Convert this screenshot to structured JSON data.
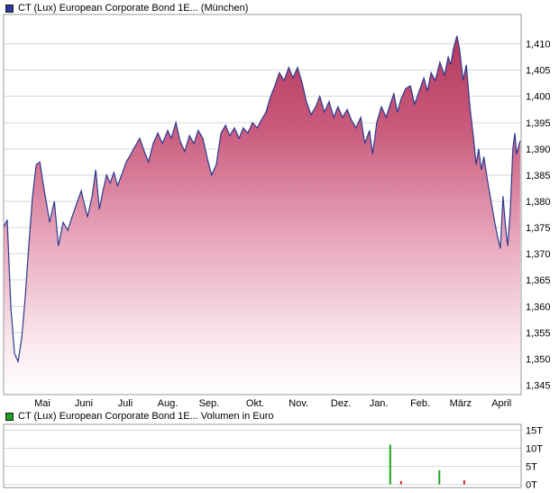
{
  "header_price": {
    "title": "CT (Lux) European Corporate Bond 1E... (München)"
  },
  "header_volume": {
    "title": "CT (Lux) European Corporate Bond 1E... Volumen in Euro"
  },
  "chart_data": [
    {
      "type": "area",
      "title": "CT (Lux) European Corporate Bond 1E... (München)",
      "marker_color": "#2b3a9c",
      "line_color": "#2b3a8f",
      "border_color": "#999999",
      "grid_color": "#d9d9d9",
      "fill_stops": [
        [
          "0%",
          "#b03055"
        ],
        [
          "30%",
          "#c95b7d"
        ],
        [
          "60%",
          "#e9a9bd"
        ],
        [
          "85%",
          "#f9e5eb"
        ],
        [
          "100%",
          "#ffffff"
        ]
      ],
      "ylim": [
        1343.2,
        1415.6
      ],
      "y_ticks": [
        1345,
        1350,
        1355,
        1360,
        1365,
        1370,
        1375,
        1380,
        1385,
        1390,
        1395,
        1400,
        1405,
        1410
      ],
      "y_tick_labels": [
        "1,345",
        "1,350",
        "1,355",
        "1,360",
        "1,365",
        "1,370",
        "1,375",
        "1,380",
        "1,385",
        "1,390",
        "1,395",
        "1,400",
        "1,405",
        "1,410"
      ],
      "x_tick_labels": [
        "Mai",
        "Juni",
        "Juli",
        "Aug.",
        "Sep.",
        "Okt.",
        "Nov.",
        "Dez.",
        "Jan.",
        "Feb.",
        "März",
        "April"
      ],
      "x_tick_positions": [
        0.075,
        0.155,
        0.235,
        0.317,
        0.397,
        0.486,
        0.57,
        0.652,
        0.725,
        0.805,
        0.883,
        0.962
      ],
      "points": [
        [
          0.0,
          1375.0
        ],
        [
          0.007,
          1376.5
        ],
        [
          0.014,
          1360.0
        ],
        [
          0.021,
          1351.0
        ],
        [
          0.028,
          1349.5
        ],
        [
          0.035,
          1354.0
        ],
        [
          0.042,
          1362.0
        ],
        [
          0.049,
          1372.0
        ],
        [
          0.056,
          1381.0
        ],
        [
          0.063,
          1387.0
        ],
        [
          0.07,
          1387.5
        ],
        [
          0.077,
          1383.0
        ],
        [
          0.084,
          1379.0
        ],
        [
          0.089,
          1376.0
        ],
        [
          0.098,
          1380.0
        ],
        [
          0.106,
          1371.5
        ],
        [
          0.115,
          1376.0
        ],
        [
          0.124,
          1374.5
        ],
        [
          0.132,
          1377.0
        ],
        [
          0.141,
          1379.5
        ],
        [
          0.15,
          1382.0
        ],
        [
          0.162,
          1377.0
        ],
        [
          0.171,
          1381.0
        ],
        [
          0.178,
          1386.0
        ],
        [
          0.185,
          1378.5
        ],
        [
          0.192,
          1382.0
        ],
        [
          0.199,
          1385.0
        ],
        [
          0.206,
          1383.5
        ],
        [
          0.213,
          1385.5
        ],
        [
          0.22,
          1383.0
        ],
        [
          0.228,
          1385.0
        ],
        [
          0.237,
          1387.5
        ],
        [
          0.246,
          1389.0
        ],
        [
          0.254,
          1390.5
        ],
        [
          0.263,
          1392.0
        ],
        [
          0.272,
          1389.5
        ],
        [
          0.28,
          1387.5
        ],
        [
          0.289,
          1391.0
        ],
        [
          0.298,
          1393.0
        ],
        [
          0.307,
          1391.0
        ],
        [
          0.317,
          1393.5
        ],
        [
          0.324,
          1392.0
        ],
        [
          0.333,
          1395.0
        ],
        [
          0.341,
          1391.5
        ],
        [
          0.35,
          1389.5
        ],
        [
          0.359,
          1392.5
        ],
        [
          0.368,
          1391.0
        ],
        [
          0.376,
          1393.5
        ],
        [
          0.385,
          1392.0
        ],
        [
          0.394,
          1388.0
        ],
        [
          0.402,
          1385.0
        ],
        [
          0.411,
          1387.0
        ],
        [
          0.42,
          1393.0
        ],
        [
          0.429,
          1394.5
        ],
        [
          0.437,
          1392.5
        ],
        [
          0.446,
          1394.0
        ],
        [
          0.455,
          1392.0
        ],
        [
          0.463,
          1394.0
        ],
        [
          0.472,
          1393.0
        ],
        [
          0.481,
          1395.0
        ],
        [
          0.49,
          1394.0
        ],
        [
          0.498,
          1395.5
        ],
        [
          0.507,
          1397.0
        ],
        [
          0.516,
          1400.0
        ],
        [
          0.524,
          1402.0
        ],
        [
          0.533,
          1404.5
        ],
        [
          0.542,
          1403.0
        ],
        [
          0.551,
          1405.5
        ],
        [
          0.559,
          1403.5
        ],
        [
          0.568,
          1405.5
        ],
        [
          0.577,
          1402.5
        ],
        [
          0.585,
          1399.0
        ],
        [
          0.594,
          1396.5
        ],
        [
          0.603,
          1398.0
        ],
        [
          0.611,
          1400.0
        ],
        [
          0.62,
          1397.0
        ],
        [
          0.629,
          1399.0
        ],
        [
          0.638,
          1396.0
        ],
        [
          0.646,
          1398.0
        ],
        [
          0.655,
          1396.0
        ],
        [
          0.664,
          1397.5
        ],
        [
          0.672,
          1395.5
        ],
        [
          0.681,
          1394.0
        ],
        [
          0.69,
          1396.0
        ],
        [
          0.698,
          1391.0
        ],
        [
          0.707,
          1393.5
        ],
        [
          0.713,
          1389.0
        ],
        [
          0.721,
          1395.0
        ],
        [
          0.73,
          1398.0
        ],
        [
          0.739,
          1396.0
        ],
        [
          0.747,
          1398.5
        ],
        [
          0.754,
          1400.5
        ],
        [
          0.761,
          1397.0
        ],
        [
          0.768,
          1399.5
        ],
        [
          0.777,
          1401.5
        ],
        [
          0.786,
          1402.0
        ],
        [
          0.794,
          1398.5
        ],
        [
          0.803,
          1401.0
        ],
        [
          0.812,
          1403.5
        ],
        [
          0.819,
          1401.0
        ],
        [
          0.826,
          1404.5
        ],
        [
          0.834,
          1403.0
        ],
        [
          0.843,
          1406.5
        ],
        [
          0.852,
          1404.0
        ],
        [
          0.859,
          1407.5
        ],
        [
          0.864,
          1406.0
        ],
        [
          0.869,
          1409.0
        ],
        [
          0.876,
          1411.5
        ],
        [
          0.881,
          1409.0
        ],
        [
          0.888,
          1403.0
        ],
        [
          0.894,
          1406.0
        ],
        [
          0.901,
          1398.0
        ],
        [
          0.908,
          1392.0
        ],
        [
          0.913,
          1387.0
        ],
        [
          0.918,
          1390.0
        ],
        [
          0.923,
          1386.0
        ],
        [
          0.928,
          1388.5
        ],
        [
          0.935,
          1384.0
        ],
        [
          0.942,
          1380.0
        ],
        [
          0.949,
          1376.0
        ],
        [
          0.955,
          1373.0
        ],
        [
          0.96,
          1371.0
        ],
        [
          0.965,
          1381.0
        ],
        [
          0.97,
          1375.0
        ],
        [
          0.974,
          1371.5
        ],
        [
          0.979,
          1378.0
        ],
        [
          0.984,
          1390.0
        ],
        [
          0.988,
          1393.0
        ],
        [
          0.991,
          1389.0
        ],
        [
          0.998,
          1391.5
        ]
      ]
    },
    {
      "type": "bar",
      "title": "CT (Lux) European Corporate Bond 1E... Volumen in Euro",
      "marker_color": "#1fa11f",
      "border_color": "#999999",
      "grid_color": "#d9d9d9",
      "unit": "T",
      "ylim": [
        -0.9,
        16.6
      ],
      "y_ticks": [
        0,
        5,
        10,
        15
      ],
      "y_tick_labels": [
        "0T",
        "5T",
        "10T",
        "15T"
      ],
      "bars": [
        [
          0.747,
          11.0,
          "#1fa11f"
        ],
        [
          0.768,
          0.9,
          "#cc2222"
        ],
        [
          0.842,
          3.9,
          "#1fa11f"
        ],
        [
          0.89,
          1.1,
          "#cc2222"
        ]
      ]
    }
  ]
}
